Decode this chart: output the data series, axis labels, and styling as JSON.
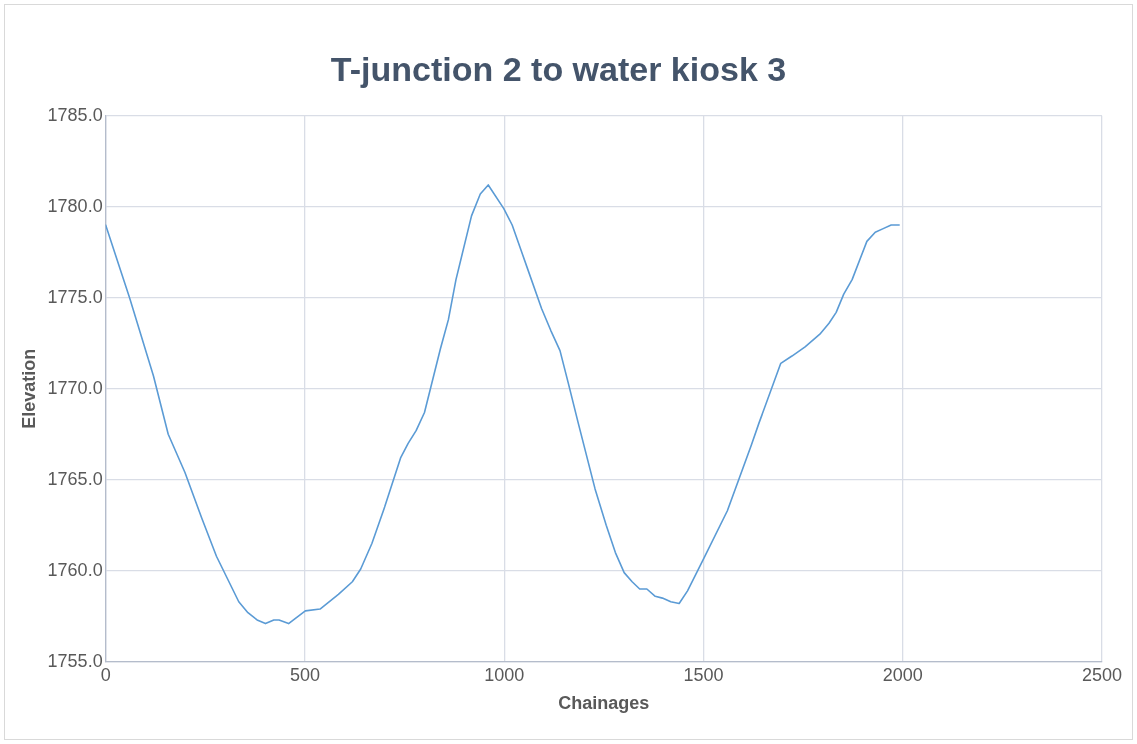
{
  "chart_data": {
    "type": "line",
    "title": "T-junction 2 to water kiosk 3",
    "xlabel": "Chainages",
    "ylabel": "Elevation",
    "xlim": [
      0,
      2500
    ],
    "xticks": [
      0,
      500,
      1000,
      1500,
      2000,
      2500
    ],
    "ylim": [
      1755,
      1785
    ],
    "yticks": [
      {
        "value": 1755,
        "label": "1755.0"
      },
      {
        "value": 1760,
        "label": "1760.0"
      },
      {
        "value": 1765,
        "label": "1765.0"
      },
      {
        "value": 1770,
        "label": "1770.0"
      },
      {
        "value": 1775,
        "label": "1775.0"
      },
      {
        "value": 1780,
        "label": "1780.0"
      },
      {
        "value": 1785,
        "label": "1785.0"
      }
    ],
    "grid": true,
    "legend": false,
    "marker": "none",
    "line_style": "solid",
    "x": [
      0,
      60,
      120,
      157,
      199,
      241,
      278,
      334,
      357,
      380,
      401,
      422,
      435,
      459,
      501,
      538,
      584,
      619,
      640,
      668,
      700,
      740,
      759,
      779,
      800,
      840,
      860,
      879,
      918,
      940,
      960,
      999,
      1020,
      1057,
      1094,
      1117,
      1140,
      1161,
      1186,
      1228,
      1256,
      1279,
      1301,
      1321,
      1340,
      1358,
      1379,
      1397,
      1418,
      1439,
      1460,
      1499,
      1560,
      1620,
      1639,
      1694,
      1722,
      1755,
      1792,
      1815,
      1833,
      1852,
      1873,
      1910,
      1931,
      1951,
      1971,
      1991
    ],
    "series": [
      {
        "color": "#5b9bd5",
        "values": [
          1779.0,
          1775.0,
          1770.7,
          1767.5,
          1765.4,
          1762.9,
          1760.8,
          1758.3,
          1757.7,
          1757.3,
          1757.1,
          1757.3,
          1757.3,
          1757.1,
          1757.8,
          1757.9,
          1758.7,
          1759.4,
          1760.1,
          1761.5,
          1763.5,
          1766.2,
          1767.0,
          1767.7,
          1768.7,
          1772.2,
          1773.8,
          1776.0,
          1779.5,
          1780.7,
          1781.2,
          1779.9,
          1779.0,
          1776.7,
          1774.4,
          1773.2,
          1772.1,
          1770.3,
          1768.1,
          1764.5,
          1762.5,
          1761.0,
          1759.9,
          1759.4,
          1759.0,
          1759.0,
          1758.6,
          1758.5,
          1758.3,
          1758.2,
          1758.9,
          1760.6,
          1763.3,
          1766.9,
          1768.1,
          1771.4,
          1771.8,
          1772.3,
          1773.0,
          1773.6,
          1774.2,
          1775.2,
          1776.0,
          1778.1,
          1778.6,
          1778.8,
          1779.0,
          1779.0
        ]
      }
    ]
  }
}
